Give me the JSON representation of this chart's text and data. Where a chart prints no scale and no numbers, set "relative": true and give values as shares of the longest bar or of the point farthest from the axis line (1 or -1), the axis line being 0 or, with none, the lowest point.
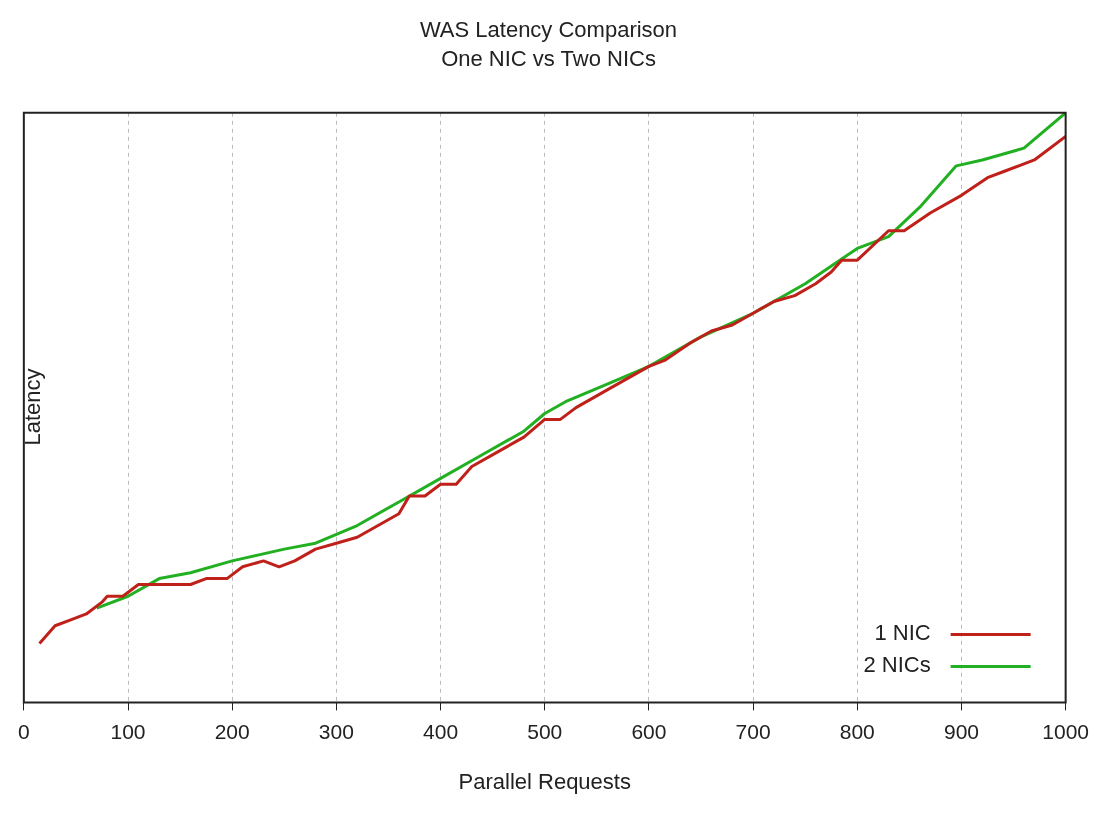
{
  "chart_data": {
    "type": "line",
    "title": "WAS Latency Comparison",
    "subtitle": "One NIC vs Two NICs",
    "xlabel": "Parallel Requests",
    "ylabel": "Latency",
    "relative": true,
    "xlim": [
      0,
      1000
    ],
    "xticks": [
      0,
      100,
      200,
      300,
      400,
      500,
      600,
      700,
      800,
      900,
      1000
    ],
    "grid": true,
    "legend": "bottom right",
    "marker": "none",
    "line_style": "solid",
    "series": [
      {
        "name": "1 NIC",
        "color": "#c0201a",
        "x": [
          15,
          30,
          45,
          60,
          75,
          80,
          95,
          110,
          115,
          140,
          160,
          175,
          195,
          210,
          230,
          245,
          260,
          280,
          300,
          320,
          340,
          360,
          370,
          385,
          400,
          415,
          430,
          460,
          480,
          500,
          515,
          530,
          560,
          580,
          600,
          615,
          640,
          660,
          680,
          700,
          720,
          740,
          760,
          775,
          785,
          800,
          830,
          845,
          870,
          900,
          925,
          940,
          955,
          970,
          1000
        ],
        "values": [
          0.1,
          0.13,
          0.14,
          0.15,
          0.17,
          0.18,
          0.18,
          0.2,
          0.2,
          0.2,
          0.2,
          0.21,
          0.21,
          0.23,
          0.24,
          0.23,
          0.24,
          0.26,
          0.27,
          0.28,
          0.3,
          0.32,
          0.35,
          0.35,
          0.37,
          0.37,
          0.4,
          0.43,
          0.45,
          0.48,
          0.48,
          0.5,
          0.53,
          0.55,
          0.57,
          0.58,
          0.61,
          0.63,
          0.64,
          0.66,
          0.68,
          0.69,
          0.71,
          0.73,
          0.75,
          0.75,
          0.8,
          0.8,
          0.83,
          0.86,
          0.89,
          0.9,
          0.91,
          0.92,
          0.96
        ]
      },
      {
        "name": "2 NICs",
        "color": "#22b022",
        "x": [
          70,
          100,
          130,
          160,
          200,
          250,
          280,
          320,
          360,
          400,
          440,
          480,
          500,
          520,
          560,
          600,
          650,
          700,
          750,
          800,
          830,
          860,
          895,
          920,
          960,
          1000
        ],
        "values": [
          0.16,
          0.18,
          0.21,
          0.22,
          0.24,
          0.26,
          0.27,
          0.3,
          0.34,
          0.38,
          0.42,
          0.46,
          0.49,
          0.51,
          0.54,
          0.57,
          0.62,
          0.66,
          0.71,
          0.77,
          0.79,
          0.84,
          0.91,
          0.92,
          0.94,
          1
        ]
      }
    ]
  }
}
